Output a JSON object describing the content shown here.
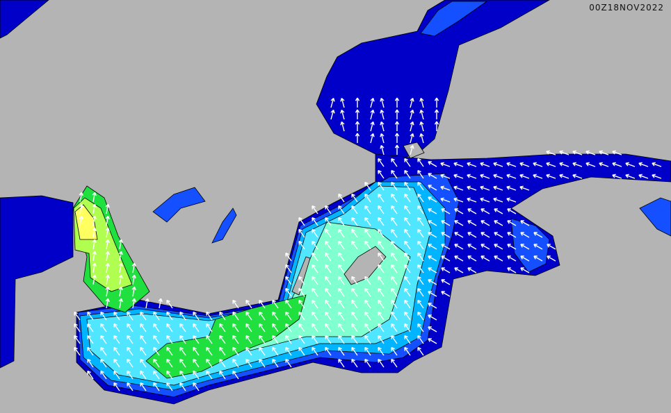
{
  "map": {
    "timestamp": "00Z18NOV2022",
    "colors": {
      "land": "#b4b4b4",
      "deep_blue": "#0000c8",
      "blue": "#1450ff",
      "light_blue": "#00b4ff",
      "cyan": "#50e6ff",
      "aqua": "#80ffd0",
      "green": "#20e040",
      "lime": "#b0ff50",
      "yellow": "#ffff60",
      "arrow": "#ffffff",
      "coast": "#000000"
    },
    "arrow_icon": "wave-direction-arrow"
  }
}
